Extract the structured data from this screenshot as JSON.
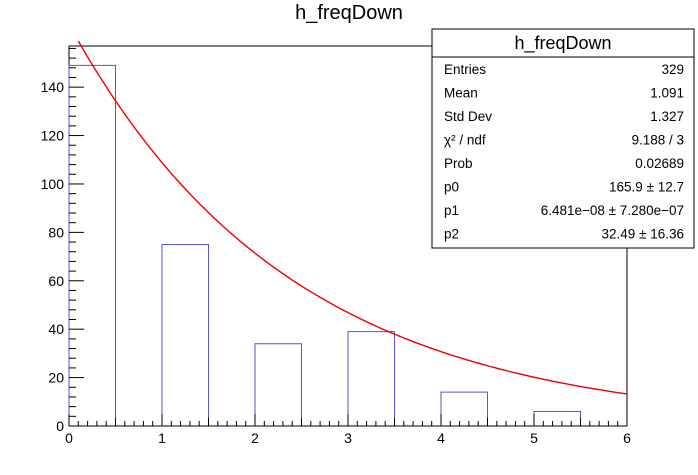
{
  "chart_data": {
    "type": "bar",
    "title": "h_freqDown",
    "xlabel": "",
    "ylabel": "",
    "xlim": [
      0,
      6
    ],
    "ylim": [
      0,
      157
    ],
    "x_ticks": [
      0,
      1,
      2,
      3,
      4,
      5,
      6
    ],
    "y_ticks": [
      0,
      20,
      40,
      60,
      80,
      100,
      120,
      140
    ],
    "bins": [
      {
        "x_low": 0.0,
        "x_high": 0.5,
        "value": 149
      },
      {
        "x_low": 0.5,
        "x_high": 1.0,
        "value": 0
      },
      {
        "x_low": 1.0,
        "x_high": 1.5,
        "value": 75
      },
      {
        "x_low": 1.5,
        "x_high": 2.0,
        "value": 0
      },
      {
        "x_low": 2.0,
        "x_high": 2.5,
        "value": 34
      },
      {
        "x_low": 2.5,
        "x_high": 3.0,
        "value": 0
      },
      {
        "x_low": 3.0,
        "x_high": 3.5,
        "value": 39
      },
      {
        "x_low": 3.5,
        "x_high": 4.0,
        "value": 0
      },
      {
        "x_low": 4.0,
        "x_high": 4.5,
        "value": 14
      },
      {
        "x_low": 4.5,
        "x_high": 5.0,
        "value": 0
      },
      {
        "x_low": 5.0,
        "x_high": 5.5,
        "value": 6
      },
      {
        "x_low": 5.5,
        "x_high": 6.0,
        "value": 0
      }
    ],
    "fit": {
      "x_start": 0.1,
      "x_end": 6.0,
      "p0": 165.9,
      "p1": 6.481e-08,
      "p2": 32.49
    },
    "colors": {
      "histogram": "#5555cc",
      "fit": "#ee0000",
      "axis": "#000000"
    },
    "legend_placement": "top-right"
  },
  "stats_box": {
    "title": "h_freqDown",
    "rows": [
      {
        "label": "Entries",
        "value": "329"
      },
      {
        "label": "Mean",
        "value": "1.091"
      },
      {
        "label": "Std Dev",
        "value": "1.327"
      },
      {
        "label": "χ² / ndf",
        "value": "9.188 / 3"
      },
      {
        "label": "Prob",
        "value": "0.02689"
      },
      {
        "label": "p0",
        "value": "165.9 ± 12.7"
      },
      {
        "label": "p1",
        "value": "6.481e−08 ± 7.280e−07"
      },
      {
        "label": "p2",
        "value": "32.49 ± 16.36"
      }
    ]
  }
}
